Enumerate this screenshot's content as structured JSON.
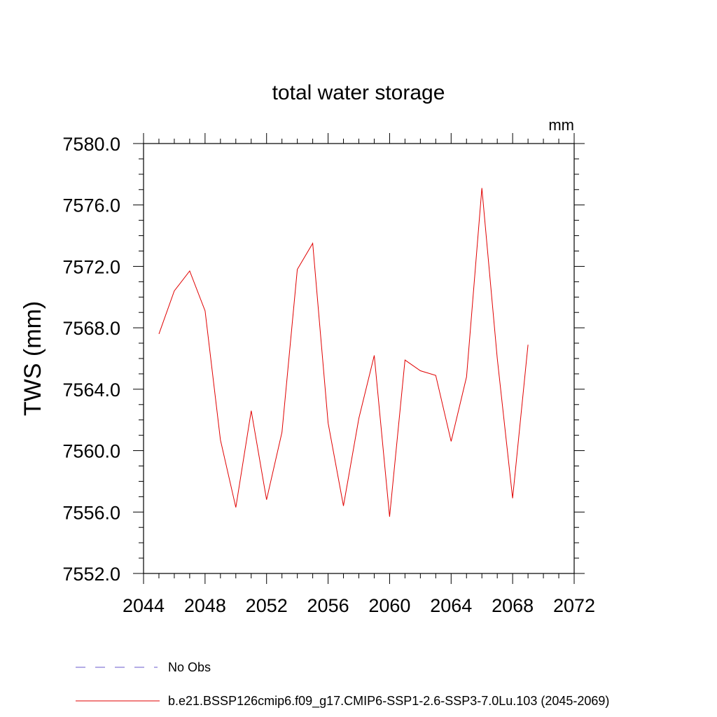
{
  "chart_data": {
    "type": "line",
    "title": "total water storage",
    "units_label": "mm",
    "ylabel": "TWS  (mm)",
    "xlabel": "",
    "xlim": [
      2044,
      2072
    ],
    "ylim": [
      7552,
      7580
    ],
    "x_ticks": [
      2044,
      2048,
      2052,
      2056,
      2060,
      2064,
      2068,
      2072
    ],
    "x_tick_labels": [
      "2044",
      "2048",
      "2052",
      "2056",
      "2060",
      "2064",
      "2068",
      "2072"
    ],
    "y_ticks": [
      7552,
      7556,
      7560,
      7564,
      7568,
      7572,
      7576,
      7580
    ],
    "y_tick_labels": [
      "7552.0",
      "7556.0",
      "7560.0",
      "7564.0",
      "7568.0",
      "7572.0",
      "7576.0",
      "7580.0"
    ],
    "grid": false,
    "legend_position": "bottom",
    "legend": [
      {
        "label": "No Obs",
        "color": "#6a5acd",
        "style": "dashed"
      },
      {
        "label": "b.e21.BSSP126cmip6.f09_g17.CMIP6-SSP1-2.6-SSP3-7.0Lu.103 (2045-2069)",
        "color": "#e00000",
        "style": "solid"
      }
    ],
    "series": [
      {
        "color": "#e00000",
        "x": [
          2045,
          2046,
          2047,
          2048,
          2049,
          2050,
          2051,
          2052,
          2053,
          2054,
          2055,
          2056,
          2057,
          2058,
          2059,
          2060,
          2061,
          2062,
          2063,
          2064,
          2065,
          2066,
          2067,
          2068,
          2069
        ],
        "values": [
          7567.6,
          7570.4,
          7571.7,
          7569.1,
          7560.7,
          7556.3,
          7562.6,
          7556.8,
          7561.2,
          7571.8,
          7573.5,
          7561.8,
          7556.4,
          7562.1,
          7566.2,
          7555.7,
          7565.9,
          7565.2,
          7564.9,
          7560.6,
          7564.8,
          7577.1,
          7566.0,
          7556.9,
          7566.9
        ]
      }
    ]
  }
}
